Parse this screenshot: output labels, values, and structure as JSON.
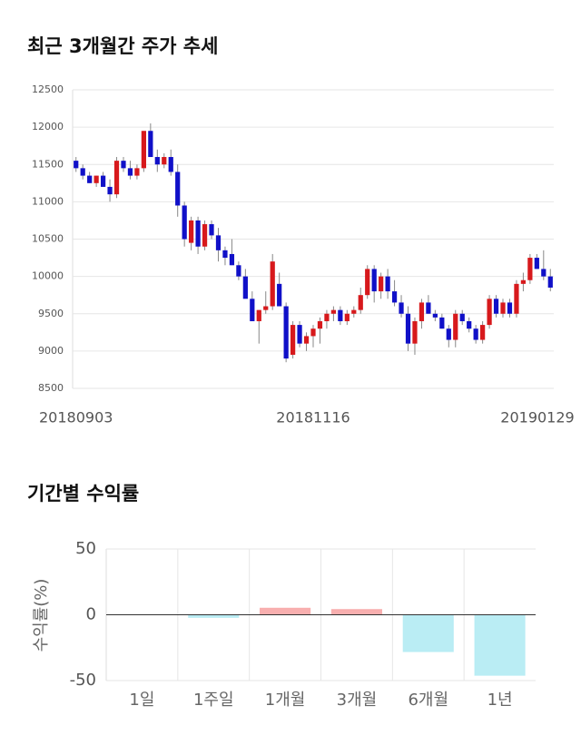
{
  "chart_data": [
    {
      "type": "candlestick",
      "title": "최근 3개월간 주가 추세",
      "categories": [
        "20180903",
        null,
        null,
        null,
        null,
        null,
        null,
        null,
        null,
        null,
        null,
        null,
        null,
        null,
        null,
        null,
        null,
        null,
        null,
        null,
        null,
        null,
        null,
        null,
        null,
        null,
        null,
        null,
        null,
        null,
        null,
        null,
        null,
        null,
        null,
        "20181116",
        null,
        null,
        null,
        null,
        null,
        null,
        null,
        null,
        null,
        null,
        null,
        null,
        null,
        null,
        null,
        null,
        null,
        null,
        null,
        null,
        null,
        null,
        null,
        null,
        null,
        null,
        null,
        null,
        null,
        null,
        null,
        null,
        null,
        null,
        "20190129"
      ],
      "values": [
        [
          11550,
          11600,
          11400,
          11450
        ],
        [
          11450,
          11500,
          11300,
          11350
        ],
        [
          11350,
          11400,
          11250,
          11250
        ],
        [
          11250,
          11350,
          11200,
          11350
        ],
        [
          11350,
          11400,
          11200,
          11200
        ],
        [
          11200,
          11300,
          11000,
          11100
        ],
        [
          11100,
          11600,
          11050,
          11550
        ],
        [
          11550,
          11600,
          11400,
          11450
        ],
        [
          11450,
          11550,
          11300,
          11350
        ],
        [
          11350,
          11500,
          11300,
          11450
        ],
        [
          11450,
          11950,
          11400,
          11950
        ],
        [
          11950,
          12050,
          11700,
          11600
        ],
        [
          11600,
          11700,
          11400,
          11500
        ],
        [
          11500,
          11650,
          11450,
          11600
        ],
        [
          11600,
          11700,
          11350,
          11400
        ],
        [
          11400,
          11500,
          10800,
          10950
        ],
        [
          10950,
          11000,
          10400,
          10500
        ],
        [
          10450,
          10800,
          10350,
          10750
        ],
        [
          10750,
          10800,
          10300,
          10400
        ],
        [
          10400,
          10750,
          10350,
          10700
        ],
        [
          10700,
          10750,
          10500,
          10550
        ],
        [
          10550,
          10650,
          10200,
          10350
        ],
        [
          10350,
          10400,
          10150,
          10250
        ],
        [
          10300,
          10500,
          10150,
          10150
        ],
        [
          10150,
          10200,
          9950,
          10000
        ],
        [
          10000,
          10100,
          9750,
          9700
        ],
        [
          9700,
          9800,
          9400,
          9400
        ],
        [
          9400,
          9550,
          9100,
          9550
        ],
        [
          9550,
          9800,
          9500,
          9600
        ],
        [
          9600,
          10300,
          9550,
          10200
        ],
        [
          9900,
          10050,
          9650,
          9600
        ],
        [
          9600,
          9650,
          8850,
          8900
        ],
        [
          8950,
          9400,
          8900,
          9350
        ],
        [
          9350,
          9400,
          9050,
          9100
        ],
        [
          9100,
          9250,
          9000,
          9200
        ],
        [
          9200,
          9350,
          9050,
          9300
        ],
        [
          9300,
          9450,
          9100,
          9400
        ],
        [
          9400,
          9550,
          9300,
          9500
        ],
        [
          9500,
          9600,
          9400,
          9550
        ],
        [
          9550,
          9600,
          9350,
          9400
        ],
        [
          9400,
          9550,
          9350,
          9500
        ],
        [
          9500,
          9600,
          9450,
          9550
        ],
        [
          9550,
          9850,
          9500,
          9750
        ],
        [
          9750,
          10150,
          9700,
          10100
        ],
        [
          10100,
          10150,
          9650,
          9800
        ],
        [
          9800,
          10050,
          9700,
          10000
        ],
        [
          10000,
          10100,
          9700,
          9800
        ],
        [
          9800,
          9950,
          9600,
          9650
        ],
        [
          9650,
          9750,
          9450,
          9500
        ],
        [
          9500,
          9600,
          9000,
          9100
        ],
        [
          9100,
          9450,
          8950,
          9400
        ],
        [
          9400,
          9700,
          9300,
          9650
        ],
        [
          9650,
          9750,
          9500,
          9500
        ],
        [
          9500,
          9550,
          9400,
          9450
        ],
        [
          9450,
          9500,
          9300,
          9300
        ],
        [
          9300,
          9350,
          9050,
          9150
        ],
        [
          9150,
          9550,
          9050,
          9500
        ],
        [
          9500,
          9550,
          9350,
          9400
        ],
        [
          9400,
          9450,
          9250,
          9300
        ],
        [
          9300,
          9350,
          9100,
          9150
        ],
        [
          9150,
          9400,
          9100,
          9350
        ],
        [
          9350,
          9750,
          9300,
          9700
        ],
        [
          9700,
          9750,
          9450,
          9500
        ],
        [
          9500,
          9700,
          9450,
          9650
        ],
        [
          9650,
          9700,
          9450,
          9500
        ],
        [
          9500,
          9950,
          9450,
          9900
        ],
        [
          9900,
          10050,
          9800,
          9950
        ],
        [
          9950,
          10300,
          9900,
          10250
        ],
        [
          10250,
          10300,
          10100,
          10100
        ],
        [
          10100,
          10350,
          9950,
          10000
        ],
        [
          10000,
          10100,
          9800,
          9850
        ]
      ],
      "up_color": "#d7191c",
      "down_color": "#1010c8",
      "ylim": [
        8500,
        12500
      ],
      "yticks": [
        8500,
        9000,
        9500,
        10000,
        10500,
        11000,
        11500,
        12000,
        12500
      ],
      "grid": true
    },
    {
      "type": "bar",
      "title": "기간별 수익률",
      "y_label": "수익률(%)",
      "categories": [
        "1일",
        "1주일",
        "1개월",
        "3개월",
        "6개월",
        "1년"
      ],
      "values": [
        0,
        -2,
        5,
        4,
        -28,
        -46
      ],
      "up_color": "#f7a6a6",
      "down_color": "#b3ebf3",
      "ylim": [
        -50,
        50
      ],
      "yticks": [
        -50,
        0,
        50
      ],
      "grid": true
    }
  ]
}
